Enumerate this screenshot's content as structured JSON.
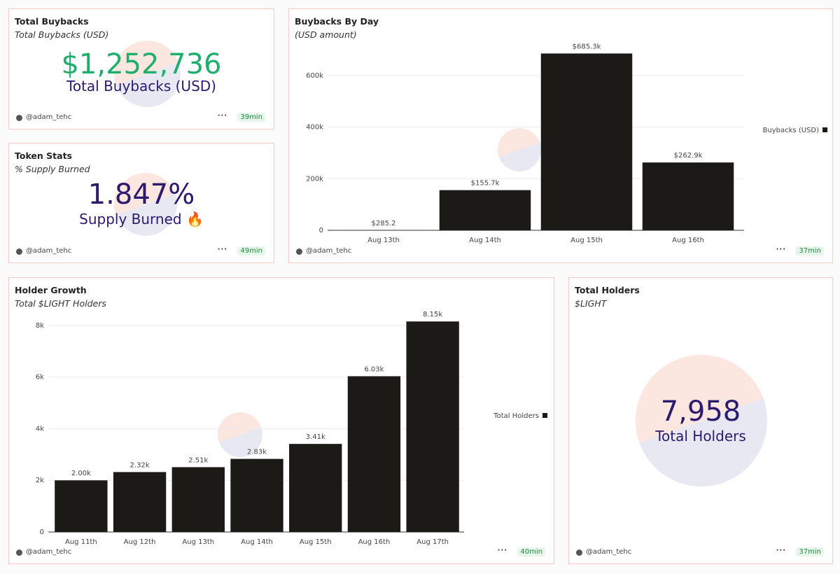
{
  "widgets": [
    {
      "title": "Total Buybacks",
      "subtitle": "Total Buybacks (USD)",
      "value": "$1,252,736",
      "label": "Total Buybacks (USD)",
      "color": "#1fae6b",
      "author": "@adam_tehc",
      "age": "39min"
    },
    {
      "title": "Token Stats",
      "subtitle": "% Supply Burned",
      "value": "1.847%",
      "label": "Supply Burned 🔥",
      "color": "#2b1a6e",
      "author": "@adam_tehc",
      "age": "49min"
    },
    {
      "title": "Total Holders",
      "subtitle": "$LIGHT",
      "value": "7,958",
      "label": "Total Holders",
      "color": "#2b1a6e",
      "author": "@adam_tehc",
      "age": "37min"
    }
  ],
  "chart_data": [
    {
      "type": "bar",
      "title": "Buybacks By Day",
      "subtitle": "(USD amount)",
      "categories": [
        "Aug 13th",
        "Aug 14th",
        "Aug 15th",
        "Aug 16th"
      ],
      "series": [
        {
          "name": "Buybacks (USD)",
          "color": "#1c1a17",
          "values": [
            285.2,
            155700,
            685300,
            262900
          ],
          "value_labels": [
            "$285.2",
            "$155.7k",
            "$685.3k",
            "$262.9k"
          ]
        }
      ],
      "ylim": [
        0,
        700000
      ],
      "yticks": [
        0,
        {
          "value": 200000,
          "label": "200k"
        },
        {
          "value": 400000,
          "label": "400k"
        },
        {
          "value": 600000,
          "label": "600k"
        }
      ],
      "grid": true,
      "legend": "right",
      "author": "@adam_tehc",
      "age": "37min"
    },
    {
      "type": "bar",
      "title": "Holder Growth",
      "subtitle": "Total $LIGHT Holders",
      "categories": [
        "Aug 11th",
        "Aug 12th",
        "Aug 13th",
        "Aug 14th",
        "Aug 15th",
        "Aug 16th",
        "Aug 17th"
      ],
      "series": [
        {
          "name": "Total Holders",
          "color": "#1c1a17",
          "values": [
            2000,
            2320,
            2510,
            2830,
            3410,
            6030,
            8150
          ],
          "value_labels": [
            "2.00k",
            "2.32k",
            "2.51k",
            "2.83k",
            "3.41k",
            "6.03k",
            "8.15k"
          ]
        }
      ],
      "ylim": [
        0,
        8400
      ],
      "yticks": [
        0,
        {
          "value": 2000,
          "label": "2k"
        },
        {
          "value": 4000,
          "label": "4k"
        },
        {
          "value": 6000,
          "label": "6k"
        },
        {
          "value": 8000,
          "label": "8k"
        }
      ],
      "grid": true,
      "legend": "right",
      "author": "@adam_tehc",
      "age": "40min"
    }
  ]
}
